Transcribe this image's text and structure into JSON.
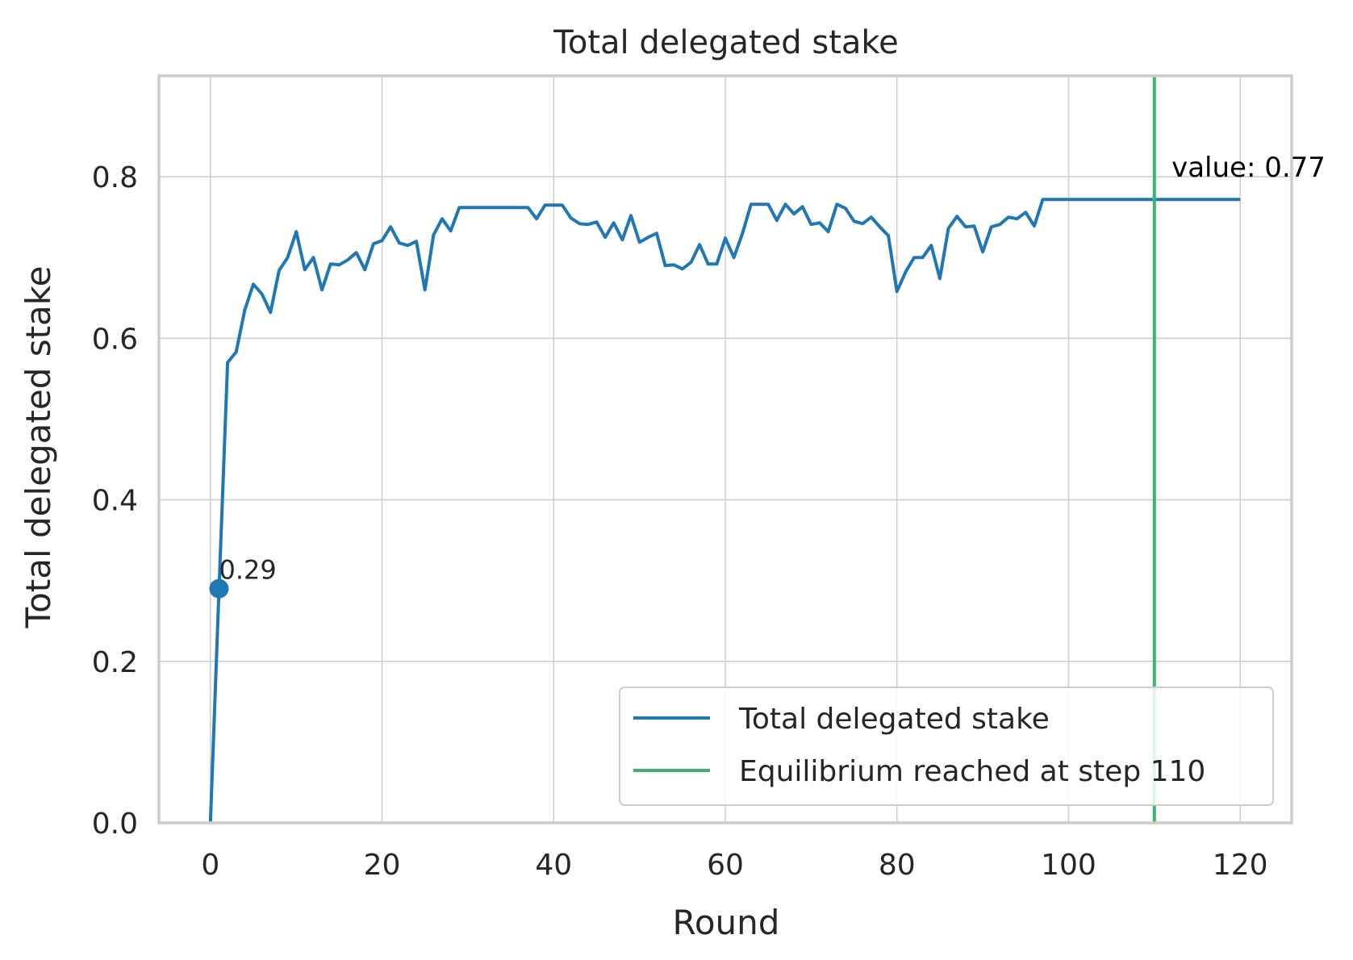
{
  "chart_data": {
    "type": "line",
    "title": "Total delegated stake",
    "xlabel": "Round",
    "ylabel": "Total delegated stake",
    "xlim": [
      -6,
      126
    ],
    "ylim": [
      0,
      0.925
    ],
    "grid": true,
    "legend_position": "lower-right",
    "x_ticks": [
      0,
      20,
      40,
      60,
      80,
      100,
      120
    ],
    "x_tick_labels": [
      "0",
      "20",
      "40",
      "60",
      "80",
      "100",
      "120"
    ],
    "y_ticks": [
      0.0,
      0.2,
      0.4,
      0.6,
      0.8
    ],
    "y_tick_labels": [
      "0.0",
      "0.2",
      "0.4",
      "0.6",
      "0.8"
    ],
    "series": [
      {
        "name": "Total delegated stake",
        "color": "#1f77b4",
        "x": [
          0,
          1,
          2,
          3,
          4,
          5,
          6,
          7,
          8,
          9,
          10,
          11,
          12,
          13,
          14,
          15,
          16,
          17,
          18,
          19,
          20,
          21,
          22,
          23,
          24,
          25,
          26,
          27,
          28,
          29,
          30,
          31,
          32,
          33,
          34,
          35,
          36,
          37,
          38,
          39,
          40,
          41,
          42,
          43,
          44,
          45,
          46,
          47,
          48,
          49,
          50,
          51,
          52,
          53,
          54,
          55,
          56,
          57,
          58,
          59,
          60,
          61,
          62,
          63,
          64,
          65,
          66,
          67,
          68,
          69,
          70,
          71,
          72,
          73,
          74,
          75,
          76,
          77,
          78,
          79,
          80,
          81,
          82,
          83,
          84,
          85,
          86,
          87,
          88,
          89,
          90,
          91,
          92,
          93,
          94,
          95,
          96,
          97,
          98,
          99,
          100,
          101,
          102,
          103,
          104,
          105,
          106,
          107,
          108,
          109,
          110,
          111,
          112,
          113,
          114,
          115,
          116,
          117,
          118,
          119,
          120
        ],
        "y": [
          0.0,
          0.29,
          0.57,
          0.583,
          0.635,
          0.667,
          0.655,
          0.632,
          0.684,
          0.7,
          0.732,
          0.685,
          0.7,
          0.66,
          0.692,
          0.691,
          0.697,
          0.706,
          0.685,
          0.717,
          0.721,
          0.738,
          0.718,
          0.715,
          0.72,
          0.66,
          0.728,
          0.748,
          0.733,
          0.762,
          0.762,
          0.762,
          0.762,
          0.762,
          0.762,
          0.762,
          0.762,
          0.762,
          0.748,
          0.765,
          0.765,
          0.765,
          0.749,
          0.742,
          0.741,
          0.744,
          0.725,
          0.743,
          0.722,
          0.752,
          0.719,
          0.725,
          0.73,
          0.69,
          0.691,
          0.686,
          0.694,
          0.716,
          0.692,
          0.692,
          0.724,
          0.7,
          0.73,
          0.766,
          0.766,
          0.766,
          0.746,
          0.766,
          0.754,
          0.763,
          0.741,
          0.743,
          0.732,
          0.766,
          0.761,
          0.745,
          0.742,
          0.75,
          0.738,
          0.727,
          0.658,
          0.682,
          0.7,
          0.7,
          0.715,
          0.674,
          0.736,
          0.751,
          0.738,
          0.739,
          0.707,
          0.738,
          0.741,
          0.75,
          0.748,
          0.756,
          0.739,
          0.772,
          0.772,
          0.772,
          0.772,
          0.772,
          0.772,
          0.772,
          0.772,
          0.772,
          0.772,
          0.772,
          0.772,
          0.772,
          0.772,
          0.772,
          0.772,
          0.772,
          0.772,
          0.772,
          0.772,
          0.772,
          0.772,
          0.772,
          0.772
        ]
      },
      {
        "name": "Equilibrium reached at step 110",
        "color": "#3cb371",
        "type": "vline",
        "x": 110
      }
    ],
    "annotations": [
      {
        "text": "0.29",
        "x": 1,
        "y": 0.29,
        "marker": true
      },
      {
        "text": "value: 0.77",
        "x": 112,
        "y": 0.77
      }
    ],
    "legend": [
      "Total delegated stake",
      "Equilibrium reached at step 110"
    ]
  }
}
